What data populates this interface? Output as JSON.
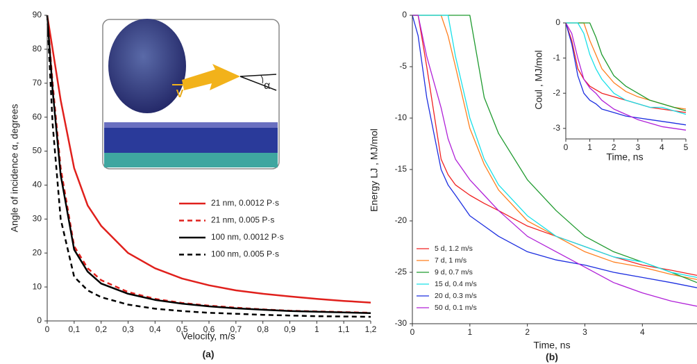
{
  "chart_data": [
    {
      "type": "line",
      "panel_label": "(a)",
      "xlabel": "Velocity, m/s",
      "ylabel": "Angle of incidence α, degrees",
      "annotations": [
        "V",
        "α"
      ],
      "x": [
        0,
        0.02,
        0.05,
        0.1,
        0.15,
        0.2,
        0.3,
        0.4,
        0.5,
        0.6,
        0.7,
        0.8,
        0.9,
        1.0,
        1.1,
        1.2
      ],
      "xlim": [
        0,
        1.2
      ],
      "xticks": [
        0,
        {
          "value": 0.1,
          "label": "0,1"
        },
        {
          "value": 0.2,
          "label": "0,2"
        },
        {
          "value": 0.3,
          "label": "0,3"
        },
        {
          "value": 0.4,
          "label": "0,4"
        },
        {
          "value": 0.5,
          "label": "0,5"
        },
        {
          "value": 0.6,
          "label": "0,6"
        },
        {
          "value": 0.7,
          "label": "0,7"
        },
        {
          "value": 0.8,
          "label": "0,8"
        },
        {
          "value": 0.9,
          "label": "0,9"
        },
        1,
        {
          "value": 1.1,
          "label": "1,1"
        },
        {
          "value": 1.2,
          "label": "1,2"
        }
      ],
      "ylim": [
        0,
        90
      ],
      "yticks": [
        0,
        10,
        20,
        30,
        40,
        50,
        60,
        70,
        80,
        90
      ],
      "series": [
        {
          "name": "21 nm, 0.0012  P·s",
          "color": "#e0201c",
          "dashed": false,
          "values": [
            90,
            80,
            65,
            45,
            34,
            28,
            20,
            15.5,
            12.5,
            10.5,
            9,
            8,
            7.2,
            6.5,
            5.9,
            5.4
          ]
        },
        {
          "name": "21 nm, 0.005  P·s",
          "color": "#e0201c",
          "dashed": true,
          "values": [
            90,
            70,
            45,
            22,
            15.5,
            12,
            8.5,
            6.5,
            5.3,
            4.5,
            3.9,
            3.4,
            3.0,
            2.8,
            2.6,
            2.4
          ]
        },
        {
          "name": "100 nm, 0.0012  P·s",
          "color": "#000000",
          "dashed": false,
          "values": [
            90,
            68,
            43,
            21,
            14.5,
            11,
            8,
            6.2,
            5.1,
            4.3,
            3.7,
            3.3,
            2.9,
            2.7,
            2.5,
            2.3
          ]
        },
        {
          "name": "100 nm, 0.005  P·s",
          "color": "#000000",
          "dashed": true,
          "values": [
            90,
            58,
            30,
            13,
            9,
            7,
            4.8,
            3.6,
            2.9,
            2.4,
            2.1,
            1.8,
            1.6,
            1.4,
            1.3,
            1.2
          ]
        }
      ]
    },
    {
      "type": "line",
      "panel_label": "(b)",
      "xlabel": "Time, ns",
      "ylabel": "Energy LJ , MJ/mol",
      "x": [
        0,
        0.1,
        0.25,
        0.5,
        0.62,
        0.75,
        1,
        1.25,
        1.5,
        2,
        2.5,
        3,
        3.5,
        4,
        4.5,
        4.95
      ],
      "xlim": [
        0,
        4.95
      ],
      "xticks": [
        0,
        1,
        2,
        3,
        4
      ],
      "ylim": [
        -30,
        0
      ],
      "yticks": [
        -30,
        -25,
        -20,
        -15,
        -10,
        -5,
        0
      ],
      "series": [
        {
          "name": "5 d, 1.2 m/s",
          "color": "#f02020",
          "values": [
            0,
            0,
            -5,
            -14,
            -15.5,
            -16.5,
            -17.5,
            -18.3,
            -19,
            -20.5,
            -21.5,
            -22.5,
            -23.5,
            -24.3,
            -24.8,
            -25.3
          ]
        },
        {
          "name": "7 d, 1 m/s",
          "color": "#ff7f1e",
          "values": [
            0,
            0,
            0,
            0,
            -2,
            -5,
            -11,
            -14.5,
            -17,
            -20,
            -21.5,
            -23,
            -24,
            -24.5,
            -25.2,
            -25.7
          ]
        },
        {
          "name": "9 d, 0.7 m/s",
          "color": "#1e9a2e",
          "values": [
            0,
            0,
            0,
            0,
            0,
            0,
            0,
            -8,
            -11.5,
            -16,
            -19,
            -21.5,
            -23,
            -24,
            -25,
            -26
          ]
        },
        {
          "name": "15 d, 0.4 m/s",
          "color": "#18e0e8",
          "values": [
            0,
            0,
            0,
            0,
            0,
            -4,
            -10,
            -14,
            -16.5,
            -19.5,
            -21.5,
            -22.5,
            -23.5,
            -24,
            -25,
            -25.5
          ]
        },
        {
          "name": "20 d, 0.3 m/s",
          "color": "#1c2ee0",
          "values": [
            0,
            -2,
            -8,
            -15,
            -16.5,
            -17.5,
            -19.5,
            -20.5,
            -21.5,
            -23,
            -23.8,
            -24.3,
            -25,
            -25.5,
            -26,
            -26.5
          ]
        },
        {
          "name": "50 d, 0.1 m/s",
          "color": "#b020d8",
          "values": [
            0,
            0,
            -4,
            -9,
            -12,
            -14,
            -16,
            -17.5,
            -19,
            -21.5,
            -23,
            -24.5,
            -26,
            -27,
            -27.8,
            -28.3
          ]
        }
      ]
    },
    {
      "type": "line",
      "xlabel": "Time, ns",
      "ylabel": "Coul , MJ/mol",
      "x": [
        0,
        0.25,
        0.5,
        0.75,
        1,
        1.25,
        1.5,
        2,
        2.5,
        3,
        3.5,
        4,
        4.5,
        5
      ],
      "xlim": [
        0,
        5
      ],
      "xticks": [
        0,
        1,
        2,
        3,
        4,
        5
      ],
      "ylim": [
        -3.3,
        0
      ],
      "yticks": [
        -3,
        -2,
        -1,
        0
      ],
      "series": [
        {
          "color": "#f02020",
          "values": [
            0,
            -0.5,
            -1.3,
            -1.6,
            -1.8,
            -1.9,
            -2.0,
            -2.1,
            -2.2,
            -2.3,
            -2.4,
            -2.45,
            -2.5,
            -2.55
          ]
        },
        {
          "color": "#ff7f1e",
          "values": [
            0,
            0,
            0,
            0,
            -0.5,
            -0.9,
            -1.3,
            -1.7,
            -1.95,
            -2.1,
            -2.2,
            -2.3,
            -2.4,
            -2.45
          ]
        },
        {
          "color": "#1e9a2e",
          "values": [
            0,
            0,
            0,
            0,
            0,
            -0.4,
            -0.9,
            -1.5,
            -1.8,
            -2.0,
            -2.2,
            -2.3,
            -2.4,
            -2.5
          ]
        },
        {
          "color": "#18e0e8",
          "values": [
            0,
            0,
            0,
            -0.3,
            -0.9,
            -1.3,
            -1.6,
            -2.0,
            -2.2,
            -2.3,
            -2.4,
            -2.4,
            -2.5,
            -2.6
          ]
        },
        {
          "color": "#1c2ee0",
          "values": [
            0,
            -0.6,
            -1.5,
            -2.0,
            -2.2,
            -2.3,
            -2.45,
            -2.55,
            -2.65,
            -2.7,
            -2.75,
            -2.8,
            -2.85,
            -2.9
          ]
        },
        {
          "color": "#b020d8",
          "values": [
            0,
            -0.3,
            -1.0,
            -1.6,
            -1.85,
            -2.0,
            -2.2,
            -2.45,
            -2.6,
            -2.75,
            -2.85,
            -2.95,
            -3.0,
            -3.05
          ]
        }
      ]
    }
  ]
}
